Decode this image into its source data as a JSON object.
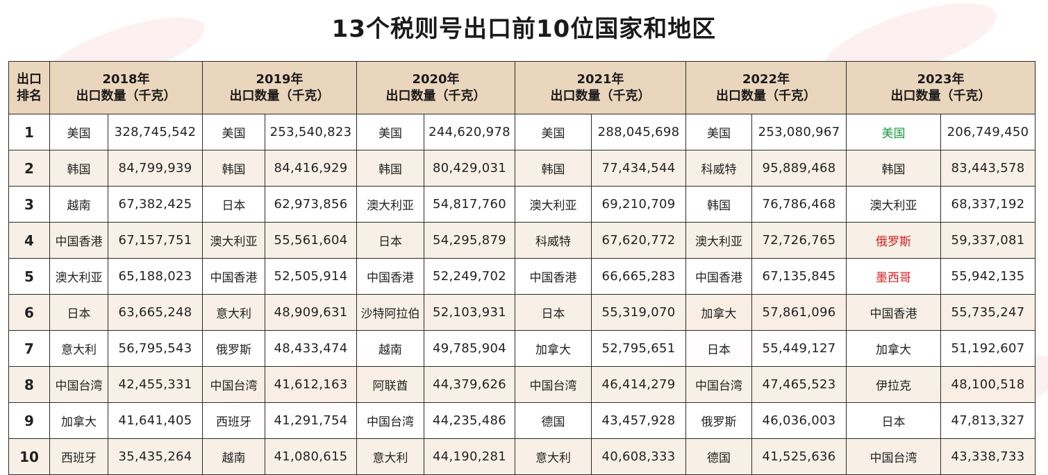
{
  "title": "13个税则号出口前10位国家和地区",
  "header": {
    "rank_label": "出口排名",
    "qty_label": "出口数量（千克）",
    "years": [
      "2018年",
      "2019年",
      "2020年",
      "2021年",
      "2022年",
      "2023年"
    ]
  },
  "highlight_colors": {
    "green": "#1a9a3c",
    "red": "#d62020"
  },
  "rows": [
    {
      "rank": "1",
      "cells": [
        {
          "country": "美国",
          "value": "328,745,542"
        },
        {
          "country": "美国",
          "value": "253,540,823"
        },
        {
          "country": "美国",
          "value": "244,620,978"
        },
        {
          "country": "美国",
          "value": "288,045,698"
        },
        {
          "country": "美国",
          "value": "253,080,967"
        },
        {
          "country": "美国",
          "value": "206,749,450",
          "color": "#1a9a3c"
        }
      ]
    },
    {
      "rank": "2",
      "cells": [
        {
          "country": "韩国",
          "value": "84,799,939"
        },
        {
          "country": "韩国",
          "value": "84,416,929"
        },
        {
          "country": "韩国",
          "value": "80,429,031"
        },
        {
          "country": "韩国",
          "value": "77,434,544"
        },
        {
          "country": "科威特",
          "value": "95,889,468"
        },
        {
          "country": "韩国",
          "value": "83,443,578"
        }
      ]
    },
    {
      "rank": "3",
      "cells": [
        {
          "country": "越南",
          "value": "67,382,425"
        },
        {
          "country": "日本",
          "value": "62,973,856"
        },
        {
          "country": "澳大利亚",
          "value": "54,817,760"
        },
        {
          "country": "澳大利亚",
          "value": "69,210,709"
        },
        {
          "country": "韩国",
          "value": "76,786,468"
        },
        {
          "country": "澳大利亚",
          "value": "68,337,192"
        }
      ]
    },
    {
      "rank": "4",
      "cells": [
        {
          "country": "中国香港",
          "value": "67,157,751"
        },
        {
          "country": "澳大利亚",
          "value": "55,561,604"
        },
        {
          "country": "日本",
          "value": "54,295,879"
        },
        {
          "country": "科威特",
          "value": "67,620,772"
        },
        {
          "country": "澳大利亚",
          "value": "72,726,765"
        },
        {
          "country": "俄罗斯",
          "value": "59,337,081",
          "color": "#d62020"
        }
      ]
    },
    {
      "rank": "5",
      "cells": [
        {
          "country": "澳大利亚",
          "value": "65,188,023"
        },
        {
          "country": "中国香港",
          "value": "52,505,914"
        },
        {
          "country": "中国香港",
          "value": "52,249,702"
        },
        {
          "country": "中国香港",
          "value": "66,665,283"
        },
        {
          "country": "中国香港",
          "value": "67,135,845"
        },
        {
          "country": "墨西哥",
          "value": "55,942,135",
          "color": "#d62020"
        }
      ]
    },
    {
      "rank": "6",
      "cells": [
        {
          "country": "日本",
          "value": "63,665,248"
        },
        {
          "country": "意大利",
          "value": "48,909,631"
        },
        {
          "country": "沙特阿拉伯",
          "value": "52,103,931"
        },
        {
          "country": "日本",
          "value": "55,319,070"
        },
        {
          "country": "加拿大",
          "value": "57,861,096"
        },
        {
          "country": "中国香港",
          "value": "55,735,247"
        }
      ]
    },
    {
      "rank": "7",
      "cells": [
        {
          "country": "意大利",
          "value": "56,795,543"
        },
        {
          "country": "俄罗斯",
          "value": "48,433,474"
        },
        {
          "country": "越南",
          "value": "49,785,904"
        },
        {
          "country": "加拿大",
          "value": "52,795,651"
        },
        {
          "country": "日本",
          "value": "55,449,127"
        },
        {
          "country": "加拿大",
          "value": "51,192,607"
        }
      ]
    },
    {
      "rank": "8",
      "cells": [
        {
          "country": "中国台湾",
          "value": "42,455,331"
        },
        {
          "country": "中国台湾",
          "value": "41,612,163"
        },
        {
          "country": "阿联酋",
          "value": "44,379,626"
        },
        {
          "country": "中国台湾",
          "value": "46,414,279"
        },
        {
          "country": "中国台湾",
          "value": "47,465,523"
        },
        {
          "country": "伊拉克",
          "value": "48,100,518"
        }
      ]
    },
    {
      "rank": "9",
      "cells": [
        {
          "country": "加拿大",
          "value": "41,641,405"
        },
        {
          "country": "西班牙",
          "value": "41,291,754"
        },
        {
          "country": "中国台湾",
          "value": "44,235,486"
        },
        {
          "country": "德国",
          "value": "43,457,928"
        },
        {
          "country": "俄罗斯",
          "value": "46,036,003"
        },
        {
          "country": "日本",
          "value": "47,813,327"
        }
      ]
    },
    {
      "rank": "10",
      "cells": [
        {
          "country": "西班牙",
          "value": "35,435,264"
        },
        {
          "country": "越南",
          "value": "41,080,615"
        },
        {
          "country": "意大利",
          "value": "44,190,281"
        },
        {
          "country": "意大利",
          "value": "40,608,333"
        },
        {
          "country": "德国",
          "value": "41,525,636"
        },
        {
          "country": "中国台湾",
          "value": "43,338,733"
        }
      ]
    }
  ]
}
